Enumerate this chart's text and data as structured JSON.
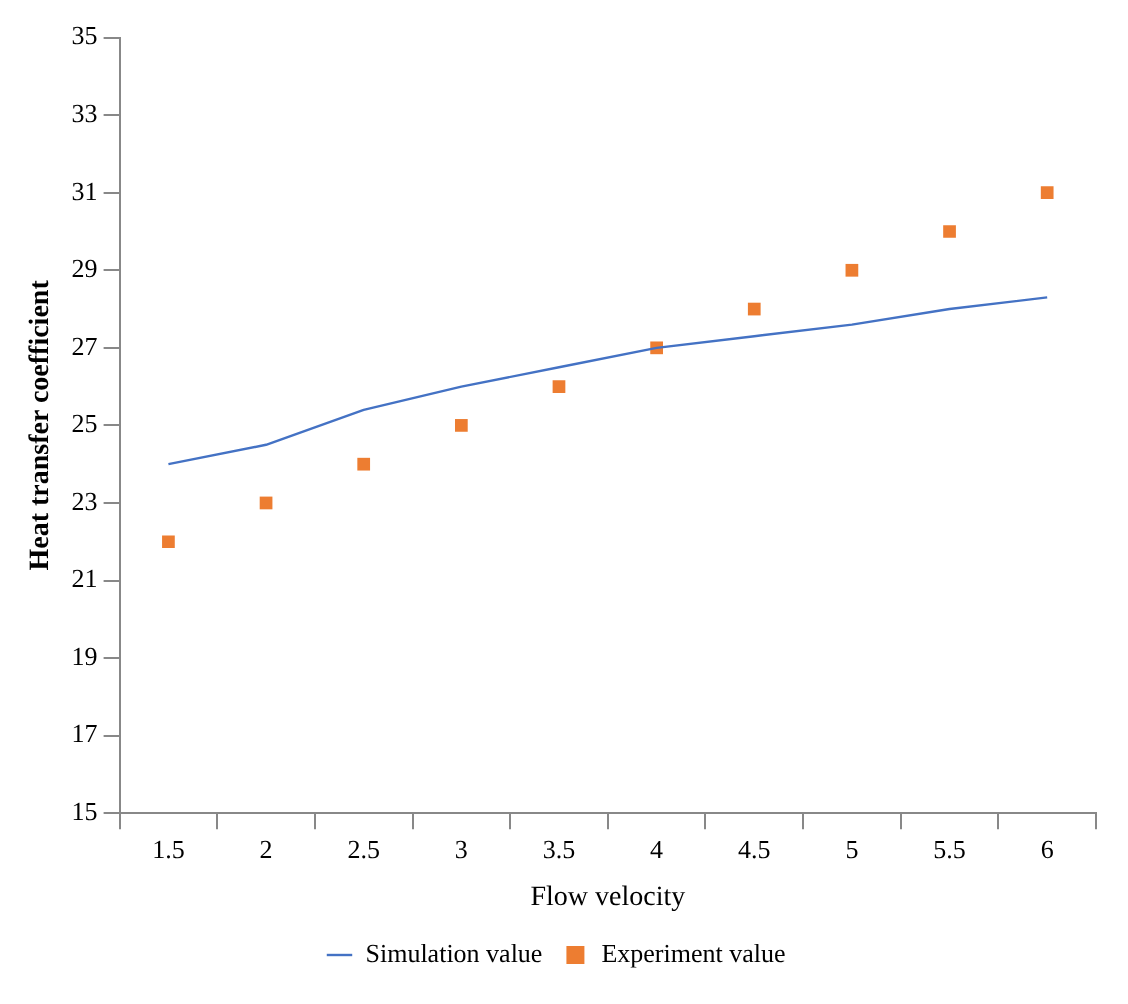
{
  "chart_data": {
    "type": "line",
    "xlabel": "Flow velocity",
    "ylabel": "Heat transfer coefficient",
    "categories": [
      "1.5",
      "2",
      "2.5",
      "3",
      "3.5",
      "4",
      "4.5",
      "5",
      "5.5",
      "6"
    ],
    "series": [
      {
        "name": "Simulation value",
        "marker": "none",
        "color": "#4472c4",
        "values": [
          24,
          24.5,
          25.4,
          26,
          26.5,
          27,
          27.3,
          27.6,
          28,
          28.3
        ]
      },
      {
        "name": "Experiment value",
        "type": "scatter",
        "marker": "square",
        "color": "#ed7d31",
        "x": [
          "1.5",
          "2",
          "2.5",
          "3",
          "3.5",
          "4",
          "4.5",
          "5",
          "5.5",
          "6"
        ],
        "values": [
          22,
          23,
          24,
          25,
          26,
          27,
          28,
          29,
          30,
          31
        ]
      }
    ],
    "ylim": [
      15,
      35
    ],
    "yticks": [
      15,
      17,
      19,
      21,
      23,
      25,
      27,
      29,
      31,
      33,
      35
    ],
    "grid": false,
    "legend": "bottom"
  }
}
